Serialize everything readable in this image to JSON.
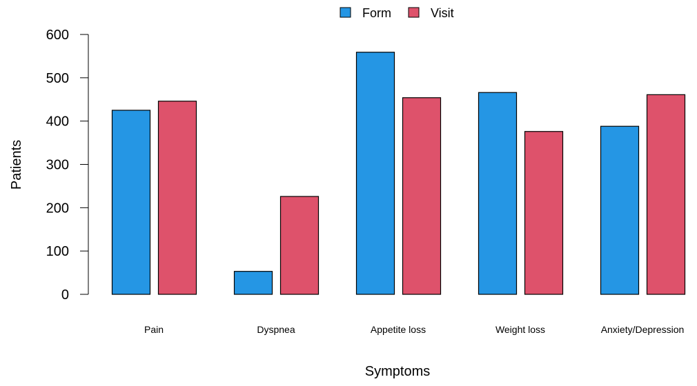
{
  "chart_data": {
    "type": "bar",
    "title": "",
    "xlabel": "Symptoms",
    "ylabel": "Patients",
    "categories": [
      "Pain",
      "Dyspnea",
      "Appetite loss",
      "Weight loss",
      "Anxiety/Depression"
    ],
    "series": [
      {
        "name": "Form",
        "color": "#2596e4",
        "values": [
          425,
          53,
          559,
          466,
          388
        ]
      },
      {
        "name": "Visit",
        "color": "#de526b",
        "values": [
          446,
          226,
          454,
          376,
          461
        ]
      }
    ],
    "ylim": [
      0,
      600
    ],
    "yticks": [
      0,
      100,
      200,
      300,
      400,
      500,
      600
    ],
    "grid": false,
    "legend_position": "top-center",
    "bar_outline_color": "#000000"
  }
}
